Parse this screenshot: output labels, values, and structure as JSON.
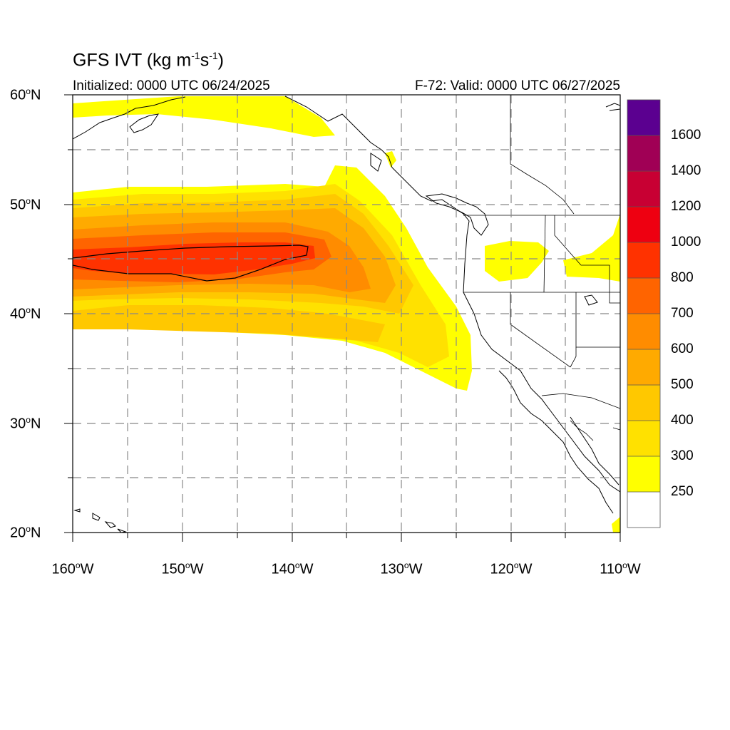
{
  "title": {
    "main": "GFS IVT (kg m",
    "sup1": "-1",
    "mid": "s",
    "sup2": "-1",
    "close": ")"
  },
  "subtitle": {
    "left": "Initialized: 0000 UTC 06/24/2025",
    "right": "F-72: Valid: 0000 UTC 06/27/2025"
  },
  "map": {
    "lon_range": [
      -160,
      -110
    ],
    "lat_range": [
      20,
      60
    ],
    "lat_ticks": [
      {
        "value": "60",
        "suffix": "N"
      },
      {
        "value": "50",
        "suffix": "N"
      },
      {
        "value": "40",
        "suffix": "N"
      },
      {
        "value": "30",
        "suffix": "N"
      },
      {
        "value": "20",
        "suffix": "N"
      }
    ],
    "lon_ticks": [
      {
        "value": "160",
        "suffix": "W"
      },
      {
        "value": "150",
        "suffix": "W"
      },
      {
        "value": "140",
        "suffix": "W"
      },
      {
        "value": "130",
        "suffix": "W"
      },
      {
        "value": "120",
        "suffix": "W"
      },
      {
        "value": "110",
        "suffix": "W"
      }
    ],
    "grid_style": "dashed",
    "grid_interval_deg": 5
  },
  "colorbar": {
    "colors": [
      "#ffffff",
      "#ffff00",
      "#ffe100",
      "#ffc800",
      "#ffaa00",
      "#ff8c00",
      "#ff6400",
      "#ff3200",
      "#ee0011",
      "#c80033",
      "#a00055",
      "#7a006e",
      "#5b0090"
    ],
    "labels": [
      "250",
      "300",
      "400",
      "500",
      "600",
      "700",
      "800",
      "1000",
      "1200",
      "1400",
      "1600"
    ]
  },
  "colors": {
    "ivt_250": "#ffff00",
    "ivt_300": "#ffe100",
    "ivt_400": "#ffc800",
    "ivt_500": "#ffaa00",
    "ivt_600": "#ff8c00",
    "ivt_700": "#ff6400",
    "ivt_800": "#ff3200"
  }
}
